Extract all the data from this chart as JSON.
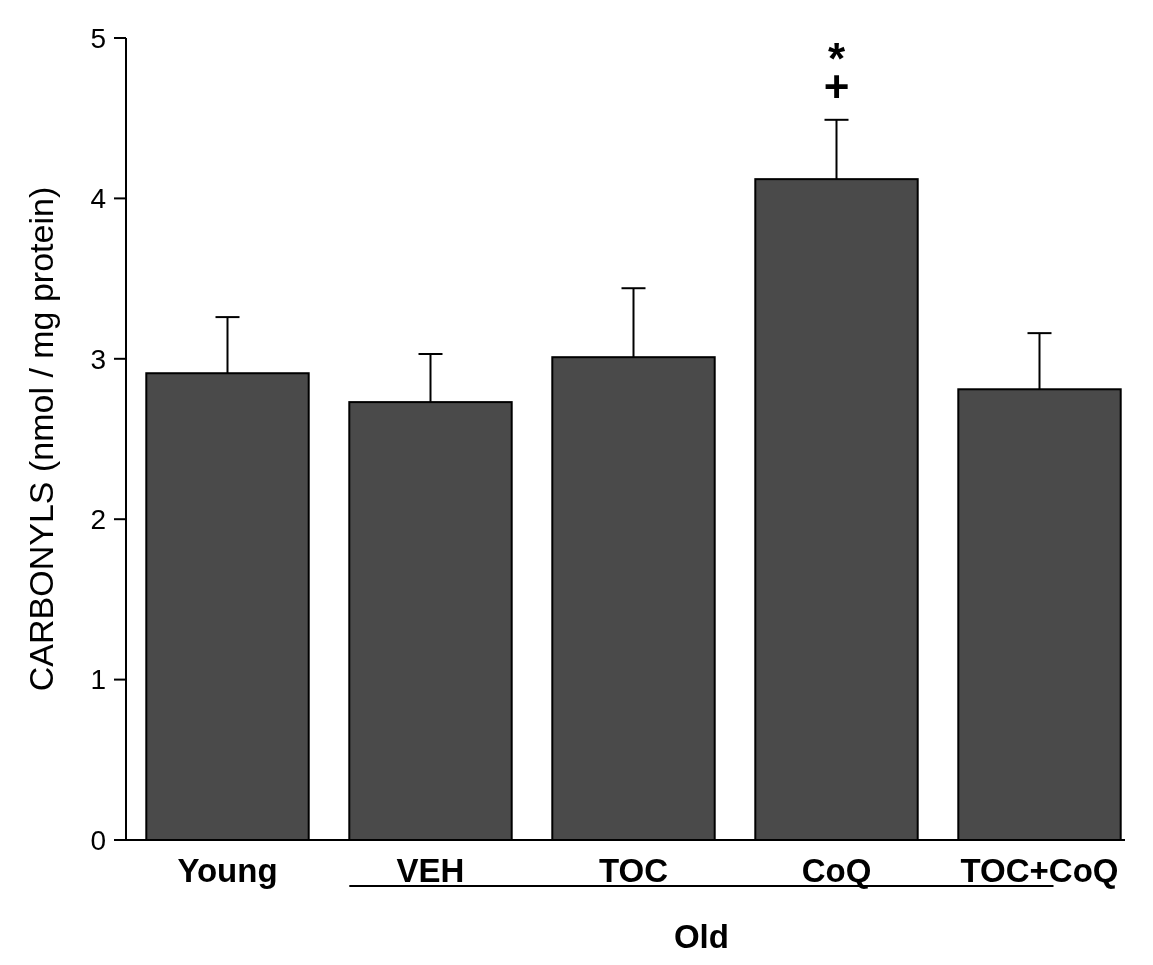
{
  "chart_data": {
    "type": "bar",
    "ylabel": "CARBONYLS (nmol / mg protein)",
    "categories": [
      "Young",
      "VEH",
      "TOC",
      "CoQ",
      "TOC+CoQ"
    ],
    "values": [
      2.91,
      2.73,
      3.01,
      4.12,
      2.81
    ],
    "errors": [
      [
        2.91,
        3.26
      ],
      [
        2.73,
        3.03
      ],
      [
        3.01,
        3.44
      ],
      [
        4.12,
        4.49
      ],
      [
        2.81,
        3.16
      ]
    ],
    "color": "#4a4a4a",
    "ylim": [
      0,
      5
    ],
    "yticks": [
      0,
      1,
      2,
      3,
      4,
      5
    ],
    "annotations": [
      "*",
      "+",
      "Old"
    ]
  }
}
